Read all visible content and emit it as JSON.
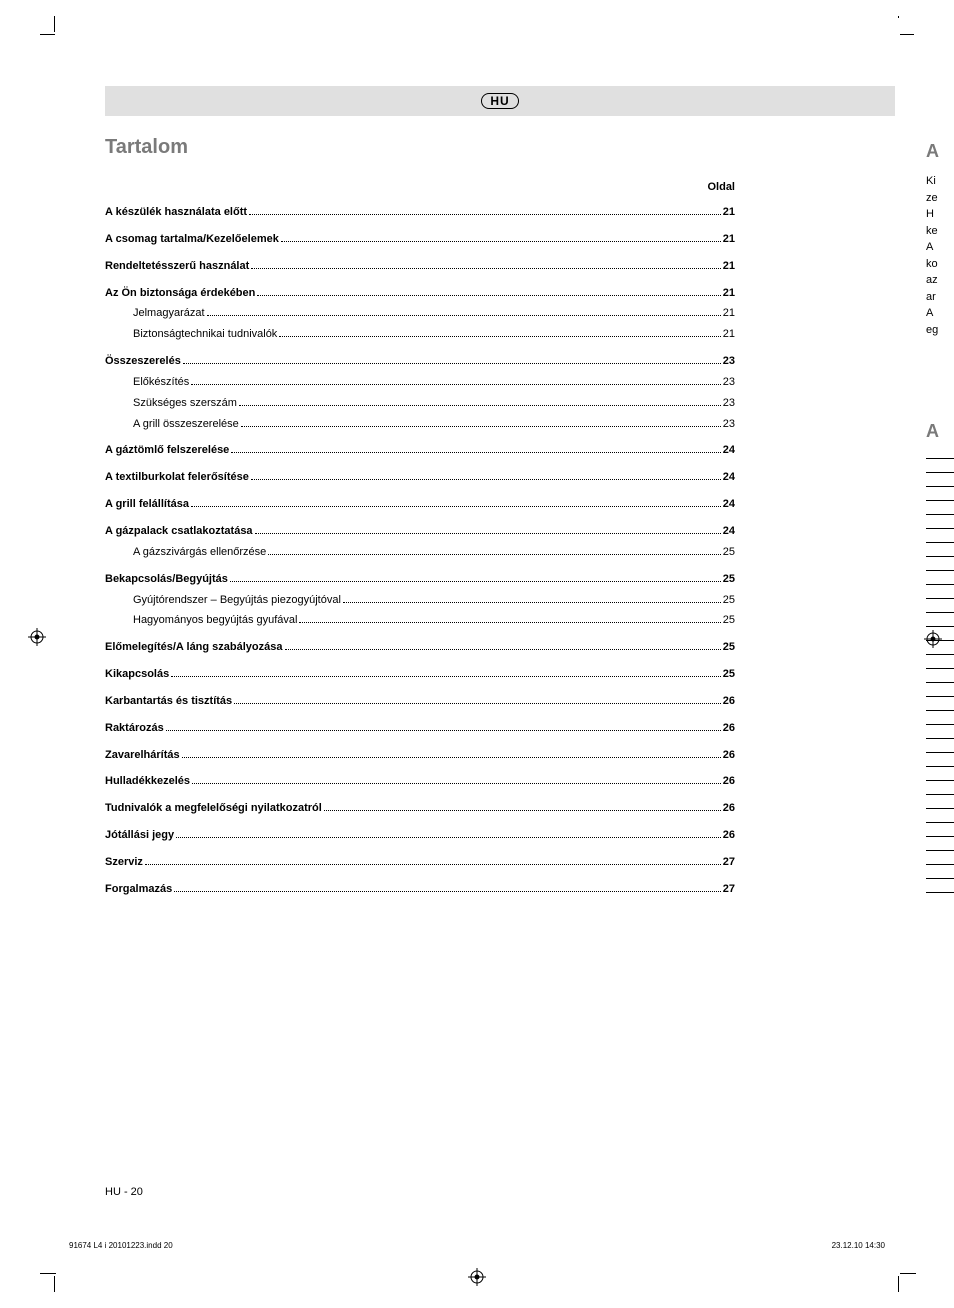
{
  "lang_code": "HU",
  "title": "Tartalom",
  "page_column_header": "Oldal",
  "footer": "HU - 20",
  "imprint_left": "91674 L4 i 20101223.indd   20",
  "imprint_right": "23.12.10   14:30",
  "toc": [
    {
      "level": 0,
      "label": "A készülék használata előtt",
      "page": "21"
    },
    {
      "level": 0,
      "label": "A csomag tartalma/Kezelőelemek",
      "page": "21"
    },
    {
      "level": 0,
      "label": "Rendeltetésszerű használat",
      "page": "21"
    },
    {
      "level": 0,
      "label": "Az Ön biztonsága érdekében",
      "page": "21"
    },
    {
      "level": 1,
      "label": "Jelmagyarázat",
      "page": "21"
    },
    {
      "level": 1,
      "label": "Biztonságtechnikai tudnivalók",
      "page": "21"
    },
    {
      "level": 0,
      "label": "Összeszerelés",
      "page": "23"
    },
    {
      "level": 1,
      "label": "Előkészítés",
      "page": "23"
    },
    {
      "level": 1,
      "label": "Szükséges szerszám",
      "page": "23"
    },
    {
      "level": 1,
      "label": "A grill összeszerelése",
      "page": "23"
    },
    {
      "level": 0,
      "label": "A gáztömlő felszerelése",
      "page": "24"
    },
    {
      "level": 0,
      "label": "A textilburkolat felerősítése",
      "page": "24"
    },
    {
      "level": 0,
      "label": "A grill felállítása",
      "page": "24"
    },
    {
      "level": 0,
      "label": "A gázpalack csatlakoztatása",
      "page": "24"
    },
    {
      "level": 1,
      "label": "A gázszivárgás ellenőrzése",
      "page": "25"
    },
    {
      "level": 0,
      "label": "Bekapcsolás/Begyújtás",
      "page": "25"
    },
    {
      "level": 1,
      "label": "Gyújtórendszer – Begyújtás piezogyújtóval",
      "page": "25"
    },
    {
      "level": 1,
      "label": "Hagyományos begyújtás gyufával",
      "page": "25"
    },
    {
      "level": 0,
      "label": "Előmelegítés/A láng szabályozása",
      "page": "25"
    },
    {
      "level": 0,
      "label": "Kikapcsolás",
      "page": "25"
    },
    {
      "level": 0,
      "label": "Karbantartás és tisztítás",
      "page": "26"
    },
    {
      "level": 0,
      "label": "Raktározás",
      "page": "26"
    },
    {
      "level": 0,
      "label": "Zavarelhárítás",
      "page": "26"
    },
    {
      "level": 0,
      "label": "Hulladékkezelés",
      "page": "26"
    },
    {
      "level": 0,
      "label": "Tudnivalók a megfelelőségi nyilatkozatról",
      "page": "26"
    },
    {
      "level": 0,
      "label": "Jótállási jegy",
      "page": "26"
    },
    {
      "level": 0,
      "label": "Szerviz",
      "page": "27"
    },
    {
      "level": 0,
      "label": "Forgalmazás",
      "page": "27"
    }
  ],
  "crop_color_bars": {
    "left": [
      "#000000",
      "#333333",
      "#009999",
      "#cc0066",
      "#f5a623",
      "#7fd13b",
      "#7a7a7a",
      "#a8a8a8",
      "#bfbfbf",
      "#d9d9d9",
      "#ececec"
    ],
    "right": [
      "#ececec",
      "#d9d9d9",
      "#bfbfbf",
      "#a8a8a8",
      "#7a7a7a",
      "#555555",
      "#333333",
      "#000000",
      "#ffffff",
      "#bfbfbf",
      "#999999"
    ]
  },
  "next_page_fragments": {
    "heading": "A",
    "lines": [
      "Ki",
      "ze",
      "H",
      "ke",
      "A",
      "ko",
      "az",
      "ar",
      "A",
      "eg"
    ],
    "heading2": "A"
  }
}
